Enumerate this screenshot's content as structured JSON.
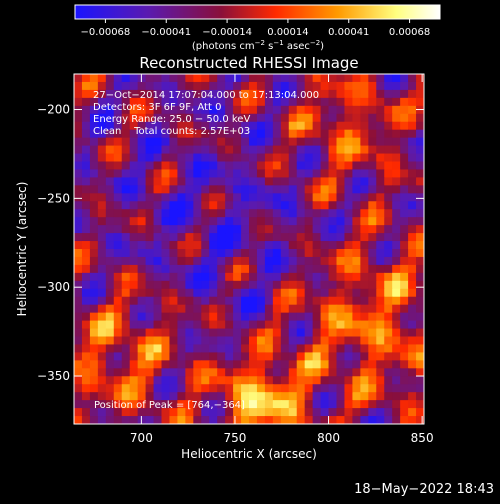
{
  "chart_data": {
    "type": "heatmap",
    "title": "Reconstructed RHESSI Image",
    "xlabel": "Heliocentric X (arcsec)",
    "ylabel": "Heliocentric Y (arcsec)",
    "xlim": [
      664,
      851
    ],
    "ylim": [
      -377,
      -180
    ],
    "x_ticks": [
      700,
      750,
      800,
      850
    ],
    "y_ticks": [
      -350,
      -300,
      -250,
      -200
    ],
    "x_tick_labels": [
      "700",
      "750",
      "800",
      "850"
    ],
    "y_tick_labels": [
      "−350",
      "−300",
      "−250",
      "−200"
    ],
    "colorbar": {
      "range": [
        -0.00068,
        0.00068
      ],
      "tick_labels": [
        "−0.00068",
        "−0.00041",
        "−0.00014",
        "0.00014",
        "0.00041",
        "0.00068"
      ],
      "label_text": "(photons cm",
      "label_exp1": "−2",
      "label_mid": " s",
      "label_exp2": "−1",
      "label_mid2": " asec",
      "label_exp3": "−2",
      "label_end": ")",
      "colors": [
        "#1a14ff",
        "#5a1ab0",
        "#8a0f3a",
        "#ff2a00",
        "#ff9a00",
        "#ffff80",
        "#ffffff"
      ]
    },
    "annotations": {
      "line1": "27−Oct−2014 17:07:04.000 to 17:13:04.000",
      "line2": "Detectors: 3F 6F 9F, Att 0",
      "line3": "Energy Range: 25.0 − 50.0 keV",
      "line4": "Clean    Total counts: 2.57E+03",
      "peak": "Position of Peak = [764,−364]"
    },
    "peak_position": [
      764,
      -364
    ],
    "grid": false
  },
  "footer": {
    "timestamp": "18−May−2022 18:43"
  }
}
